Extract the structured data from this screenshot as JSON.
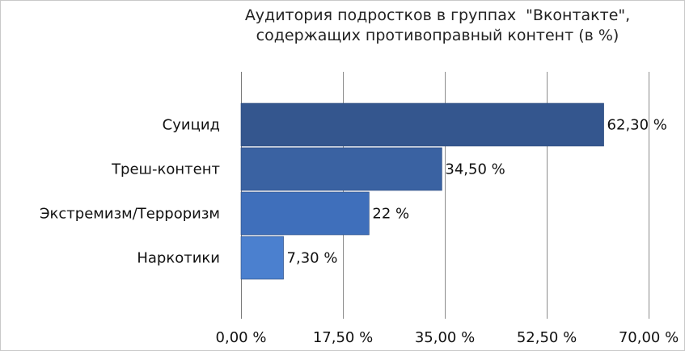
{
  "chart_data": {
    "type": "bar",
    "orientation": "horizontal",
    "title_lines": [
      "Аудитория подростков в группах  \"Вконтакте\",",
      "содержащих противоправный контент (в %)"
    ],
    "categories": [
      "Суицид",
      "Треш-контент",
      "Экстремизм/Терроризм",
      "Наркотики"
    ],
    "values": [
      62.3,
      34.5,
      22,
      7.3
    ],
    "value_labels": [
      "62,30 %",
      "34,50 %",
      "22 %",
      "7,30 %"
    ],
    "xlim": [
      0,
      70
    ],
    "x_ticks": [
      0,
      17.5,
      35,
      52.5,
      70
    ],
    "x_tick_labels": [
      "0,00 %",
      "17,50 %",
      "35,00 %",
      "52,50 %",
      "70,00 %"
    ],
    "grid": "vertical",
    "legend": "none",
    "bar_colors": [
      "#34568e",
      "#3a62a2",
      "#3f6fbb",
      "#4b80cf"
    ],
    "grid_color": "#8c8c8c"
  }
}
